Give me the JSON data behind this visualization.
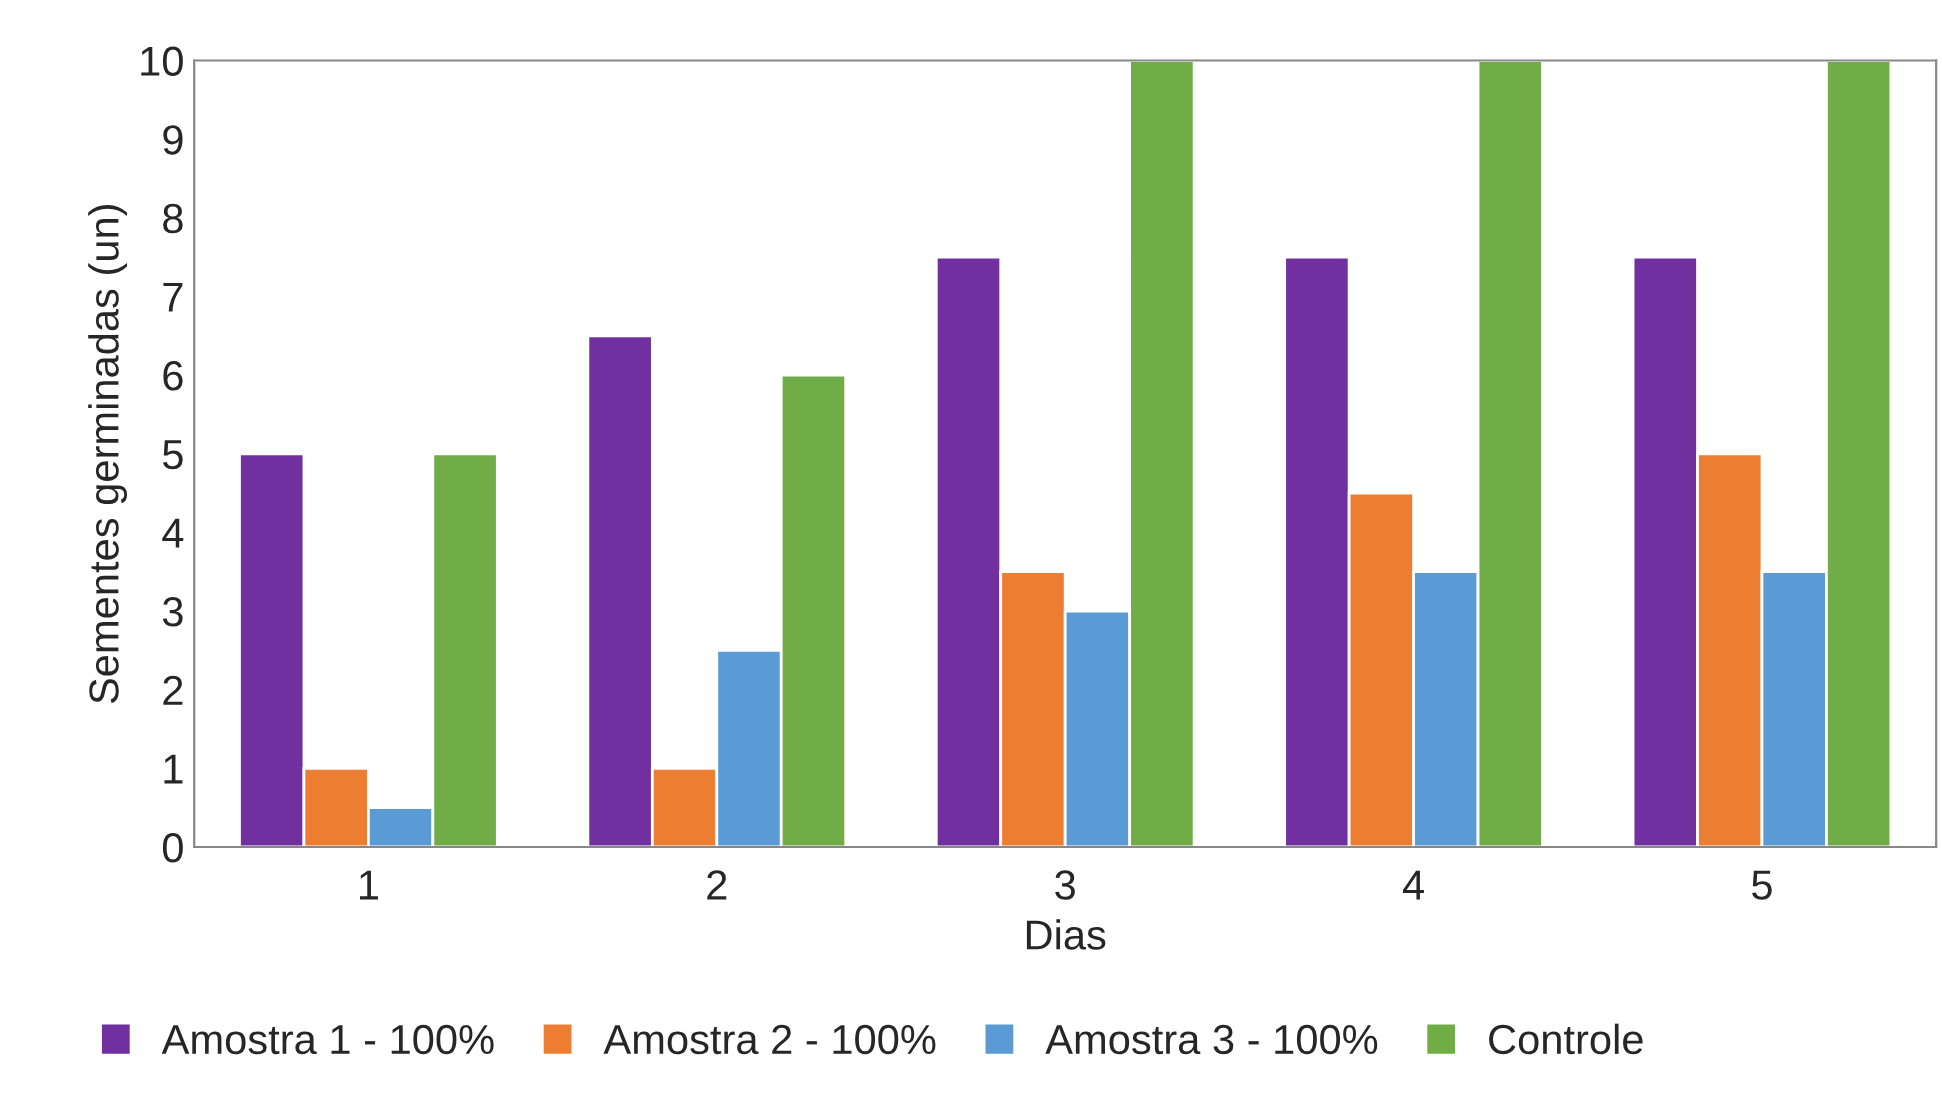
{
  "chart_data": {
    "type": "bar",
    "xlabel": "Dias",
    "ylabel": "Sementes germinadas (un)",
    "categories": [
      "1",
      "2",
      "3",
      "4",
      "5"
    ],
    "series": [
      {
        "name": "Amostra 1 - 100%",
        "color": "#7030a0",
        "values": [
          5,
          6.5,
          7.5,
          7.5,
          7.5
        ]
      },
      {
        "name": "Amostra 2 - 100%",
        "color": "#ed7d31",
        "values": [
          1,
          1,
          3.5,
          4.5,
          5
        ]
      },
      {
        "name": "Amostra 3 - 100%",
        "color": "#5b9bd5",
        "values": [
          0.5,
          2.5,
          3,
          3.5,
          3.5
        ]
      },
      {
        "name": "Controle",
        "color": "#70ad47",
        "values": [
          5,
          6,
          10,
          10,
          10
        ]
      }
    ],
    "ylim": [
      0,
      10
    ],
    "yticks": [
      0,
      1,
      2,
      3,
      4,
      5,
      6,
      7,
      8,
      9,
      10
    ],
    "grid": false,
    "legend": "bottom"
  }
}
